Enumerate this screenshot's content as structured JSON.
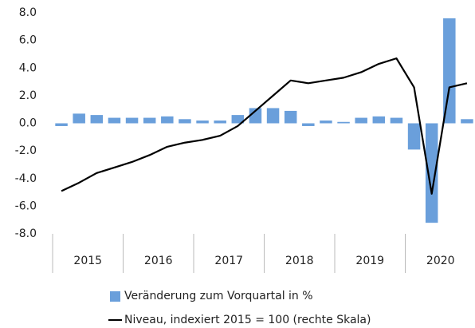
{
  "chart_data": {
    "type": "bar_line",
    "categories": [
      null,
      null,
      null,
      null,
      null,
      null,
      null,
      null,
      null,
      null,
      null,
      null,
      null,
      null,
      null,
      null,
      null,
      null,
      null,
      null,
      null,
      null,
      null,
      null
    ],
    "year_labels": [
      "2015",
      "2016",
      "2017",
      "2018",
      "2019",
      "2020"
    ],
    "series": [
      {
        "name": "Veränderung zum Vorquartal in %",
        "type": "bar",
        "color": "#6a9fdb",
        "values": [
          -0.2,
          0.7,
          0.6,
          0.4,
          0.4,
          0.4,
          0.5,
          0.3,
          0.2,
          0.2,
          0.6,
          1.1,
          1.1,
          0.9,
          -0.2,
          0.2,
          0.1,
          0.4,
          0.5,
          0.4,
          -1.9,
          -7.2,
          7.6,
          0.3
        ]
      },
      {
        "name": "Niveau, indexiert 2015 = 100 (rechte Skala)",
        "type": "line",
        "color": "#000000",
        "values": [
          -4.9,
          -4.3,
          -3.6,
          -3.2,
          -2.8,
          -2.3,
          -1.7,
          -1.4,
          -1.2,
          -0.9,
          -0.2,
          0.9,
          2.0,
          3.1,
          2.9,
          3.1,
          3.3,
          3.7,
          4.3,
          4.7,
          2.6,
          -5.1,
          2.6,
          2.9
        ]
      }
    ],
    "ylim": [
      -8,
      8
    ],
    "yticks": [
      {
        "value": -8,
        "label": "-8.0"
      },
      {
        "value": -6,
        "label": "-6.0"
      },
      {
        "value": -4,
        "label": "-4.0"
      },
      {
        "value": -2,
        "label": "-2.0"
      },
      {
        "value": 0,
        "label": "0.0"
      },
      {
        "value": 2,
        "label": "2.0"
      },
      {
        "value": 4,
        "label": "4.0"
      },
      {
        "value": 6,
        "label": "6.0"
      },
      {
        "value": 8,
        "label": "8.0"
      }
    ],
    "grid": false
  }
}
